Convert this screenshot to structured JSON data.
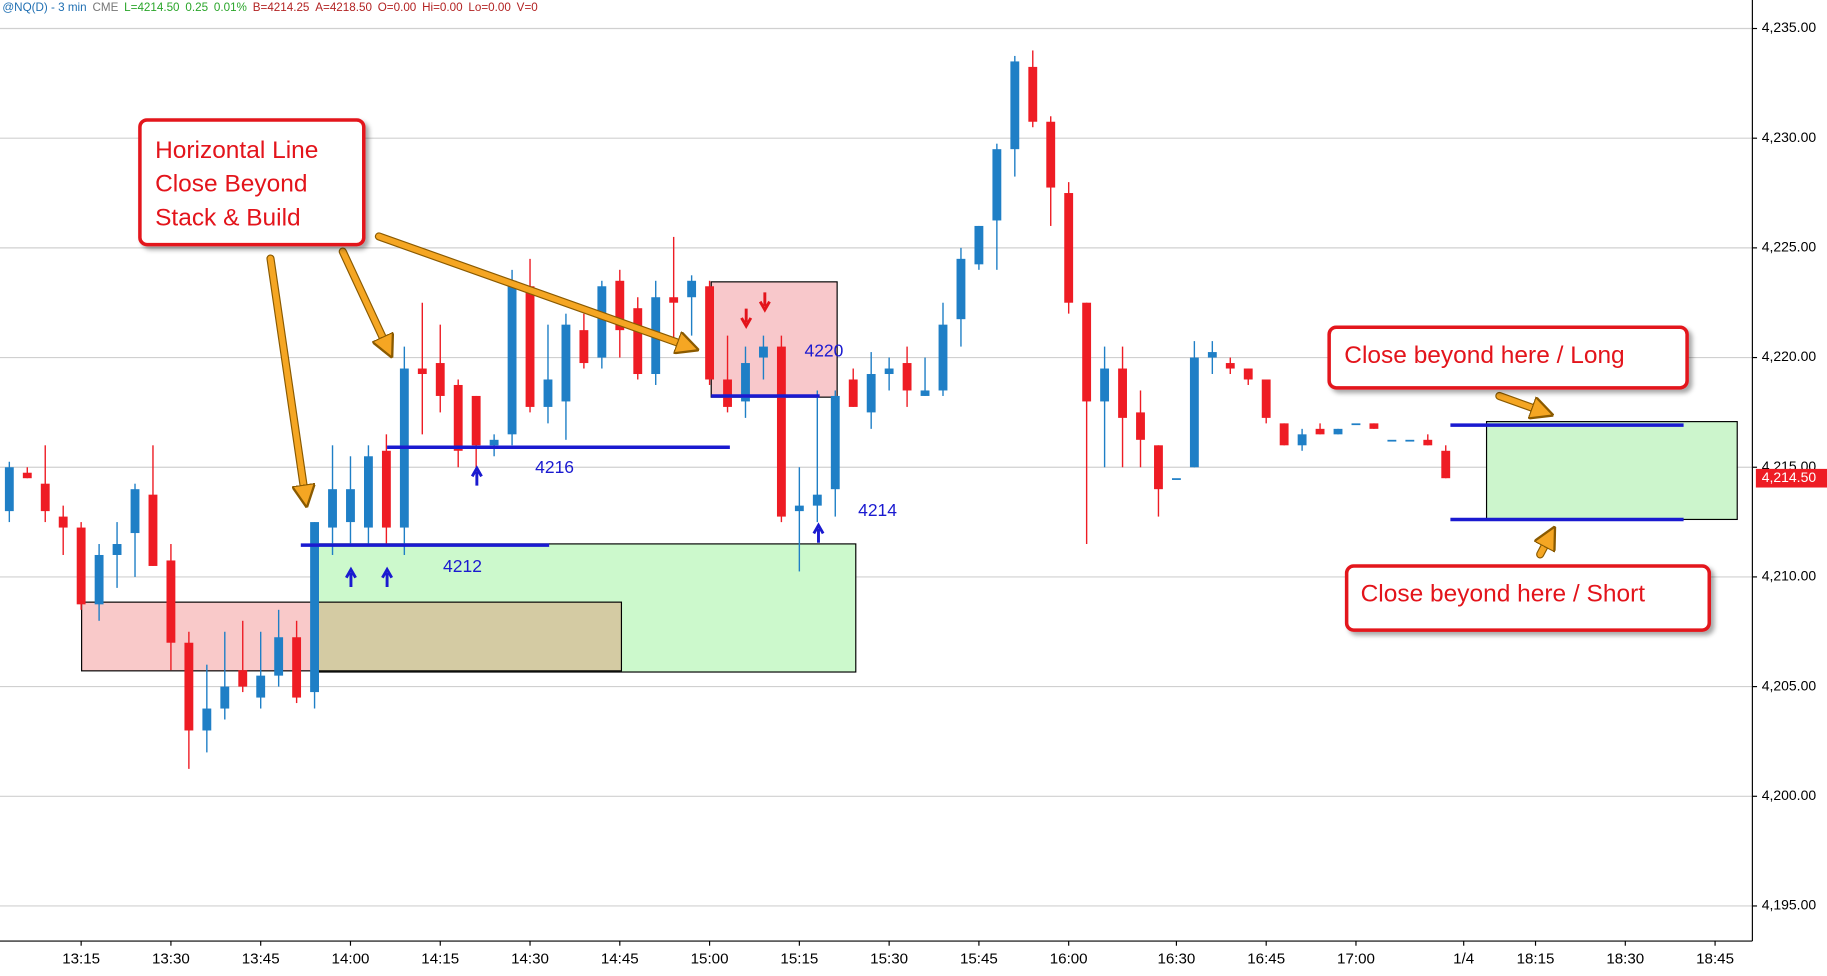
{
  "chart_data": {
    "type": "candlestick",
    "header": [
      "@NQ(D) - 3 min",
      "CME",
      "L=4214.50",
      "0.25",
      "0.01%",
      "B=4214.25",
      "A=4218.50",
      "O=0.00",
      "Hi=0.00",
      "Lo=0.00",
      "V=0"
    ],
    "header_colors": [
      "#1f6fb2",
      "#777777",
      "#2aa52a",
      "#2aa52a",
      "#2aa52a",
      "#b22222",
      "#b22222",
      "#b22222",
      "#b22222",
      "#b22222",
      "#b22222"
    ],
    "categories": [
      null,
      null,
      null,
      null,
      "13:15",
      null,
      null,
      null,
      null,
      "13:30",
      null,
      null,
      null,
      null,
      "13:45",
      null,
      null,
      null,
      null,
      "14:00",
      null,
      null,
      null,
      null,
      "14:15",
      null,
      null,
      null,
      null,
      "14:30",
      null,
      null,
      null,
      null,
      "14:45",
      null,
      null,
      null,
      null,
      "15:00",
      null,
      null,
      null,
      null,
      "15:15",
      null,
      null,
      null,
      null,
      "15:30",
      null,
      null,
      null,
      null,
      "15:45",
      null,
      null,
      null,
      null,
      "16:00",
      null,
      null,
      null,
      null,
      null,
      "16:30",
      null,
      null,
      null,
      null,
      "16:45",
      null,
      null,
      null,
      null,
      "17:00",
      null,
      null,
      null,
      null,
      null,
      "1/4",
      null,
      null,
      null,
      "18:15",
      null,
      null,
      null,
      null,
      "18:30",
      null,
      null,
      null,
      null,
      "18:45",
      null
    ],
    "open": [
      4213.0,
      4214.75,
      4214.25,
      4212.75,
      4212.25,
      4208.75,
      4211.0,
      4212.0,
      4213.75,
      4210.75,
      4207.0,
      4203.0,
      4204.0,
      4205.75,
      4204.5,
      4205.5,
      4207.25,
      4204.75,
      4212.25,
      4212.5,
      4212.25,
      4215.75,
      4212.25,
      4219.5,
      4219.75,
      4218.75,
      4218.25,
      4216.0,
      4216.5,
      4223.25,
      4217.75,
      4218.0,
      4221.25,
      4220.0,
      4223.5,
      4222.25,
      4219.25,
      4222.75,
      4222.75,
      4223.25,
      4219.0,
      4218.0,
      4220.0,
      4220.5,
      4213.0,
      4213.25,
      4214.0,
      4219.0,
      4217.5,
      4219.25,
      4219.75,
      4218.25,
      4218.5,
      4221.75,
      4224.25,
      4226.25,
      4229.5,
      4233.25,
      4230.75,
      4227.5,
      4222.5,
      4218.0,
      4219.5,
      4217.5,
      4216.0,
      4214.5,
      4215.0,
      4220.0,
      4219.75,
      4219.5,
      4219.0,
      4217.0,
      4216.0,
      4216.75,
      4216.5,
      4217.0,
      4217.0,
      4216.25,
      4216.25,
      4216.25,
      4215.75,
      null,
      null,
      null,
      null,
      null,
      null,
      null,
      null,
      null,
      null,
      null,
      null,
      null,
      null,
      null,
      null
    ],
    "high": [
      4215.25,
      4215.0,
      4216.0,
      4213.25,
      4212.5,
      4211.5,
      4212.5,
      4214.25,
      4216.0,
      4211.5,
      4207.5,
      4206.0,
      4207.5,
      4208.0,
      4207.5,
      4208.5,
      4208.0,
      4212.5,
      4216.0,
      4215.5,
      4216.0,
      4216.5,
      4220.5,
      4222.5,
      4221.5,
      4219.0,
      4218.25,
      4216.5,
      4224.0,
      4224.5,
      4221.5,
      4222.0,
      4222.0,
      4223.5,
      4224.0,
      4222.75,
      4223.5,
      4225.5,
      4223.75,
      4223.5,
      4221.0,
      4220.5,
      4221.0,
      4221.0,
      4215.0,
      4218.5,
      4218.5,
      4219.5,
      4220.25,
      4220.0,
      4220.5,
      4220.0,
      4222.5,
      4225.0,
      4226.0,
      4229.75,
      4233.75,
      4234.0,
      4231.0,
      4228.0,
      4222.5,
      4220.5,
      4220.5,
      4218.5,
      4216.0,
      4214.5,
      4220.75,
      4220.75,
      4220.0,
      4219.5,
      4219.0,
      4217.0,
      4216.75,
      4217.0,
      4216.75,
      4217.0,
      4217.0,
      4216.25,
      4216.25,
      4216.5,
      4216.0,
      null,
      null,
      null,
      null,
      null,
      null,
      null,
      null,
      null,
      null,
      null,
      null,
      null,
      null,
      null,
      null
    ],
    "low": [
      4212.5,
      4214.5,
      4212.5,
      4211.0,
      4208.5,
      4208.0,
      4209.5,
      4210.0,
      4210.5,
      4205.75,
      4201.25,
      4202.0,
      4203.5,
      4204.75,
      4204.0,
      4205.0,
      4204.25,
      4204.0,
      4211.0,
      4211.5,
      4211.5,
      4211.5,
      4211.0,
      4216.5,
      4217.5,
      4215.0,
      4214.5,
      4215.5,
      4216.0,
      4217.5,
      4217.0,
      4216.25,
      4219.5,
      4219.5,
      4220.0,
      4219.0,
      4218.75,
      4220.75,
      4221.0,
      4218.75,
      4217.5,
      4217.25,
      4219.0,
      4212.5,
      4210.25,
      4212.5,
      4212.75,
      4217.75,
      4216.75,
      4218.5,
      4217.75,
      4218.25,
      4218.25,
      4220.5,
      4224.0,
      4224.0,
      4228.25,
      4230.5,
      4226.0,
      4222.0,
      4211.5,
      4215.0,
      4215.0,
      4215.0,
      4212.75,
      4214.5,
      4215.0,
      4219.25,
      4219.25,
      4218.75,
      4217.0,
      4216.0,
      4215.75,
      4216.5,
      4216.5,
      4217.0,
      4216.75,
      4216.25,
      4216.25,
      4216.0,
      4214.5,
      null,
      null,
      null,
      null,
      null,
      null,
      null,
      null,
      null,
      null,
      null,
      null,
      null,
      null,
      null,
      null
    ],
    "close": [
      4215.0,
      4214.5,
      4213.0,
      4212.25,
      4208.75,
      4211.0,
      4211.5,
      4214.0,
      4210.5,
      4207.0,
      4203.0,
      4204.0,
      4205.0,
      4205.0,
      4205.5,
      4207.25,
      4204.5,
      4212.5,
      4214.0,
      4214.0,
      4215.5,
      4212.25,
      4219.5,
      4219.25,
      4218.25,
      4215.75,
      4216.0,
      4216.25,
      4223.5,
      4217.75,
      4219.0,
      4221.5,
      4219.75,
      4223.25,
      4221.25,
      4219.25,
      4222.75,
      4222.5,
      4223.5,
      4219.0,
      4217.75,
      4219.75,
      4220.5,
      4212.75,
      4213.25,
      4213.75,
      4218.25,
      4217.75,
      4219.25,
      4219.5,
      4218.5,
      4218.5,
      4221.5,
      4224.5,
      4226.0,
      4229.5,
      4233.5,
      4230.75,
      4227.75,
      4222.5,
      4218.0,
      4219.5,
      4217.25,
      4216.25,
      4214.0,
      4214.5,
      4220.0,
      4220.25,
      4219.5,
      4219.0,
      4217.25,
      4216.0,
      4216.5,
      4216.5,
      4216.75,
      4217.0,
      4216.75,
      4216.25,
      4216.25,
      4216.0,
      4214.5,
      null,
      null,
      null,
      null,
      null,
      null,
      null,
      null,
      null,
      null,
      null,
      null,
      null,
      null,
      null,
      null
    ],
    "up_color": "#1f7fc6",
    "down_color": "#ee1c24",
    "ylim": [
      4193.4,
      4236.3
    ],
    "yticks": [
      {
        "value": 4195,
        "label": "4,195.00"
      },
      {
        "value": 4200,
        "label": "4,200.00"
      },
      {
        "value": 4205,
        "label": "4,205.00"
      },
      {
        "value": 4210,
        "label": "4,210.00"
      },
      {
        "value": 4215,
        "label": "4,215.00"
      },
      {
        "value": 4220,
        "label": "4,220.00"
      },
      {
        "value": 4225,
        "label": "4,225.00"
      },
      {
        "value": 4230,
        "label": "4,230.00"
      },
      {
        "value": 4235,
        "label": "4,235.00"
      }
    ],
    "grid": true,
    "last_price": {
      "value": 4214.5,
      "label": "4,214.50"
    },
    "callout_main": [
      "Horizontal Line",
      "Close Beyond",
      "Stack & Build"
    ],
    "callout_long": "Close beyond here / Long",
    "callout_short": "Close beyond here / Short",
    "level_labels": [
      "4216",
      "4212",
      "4220",
      "4214"
    ]
  }
}
